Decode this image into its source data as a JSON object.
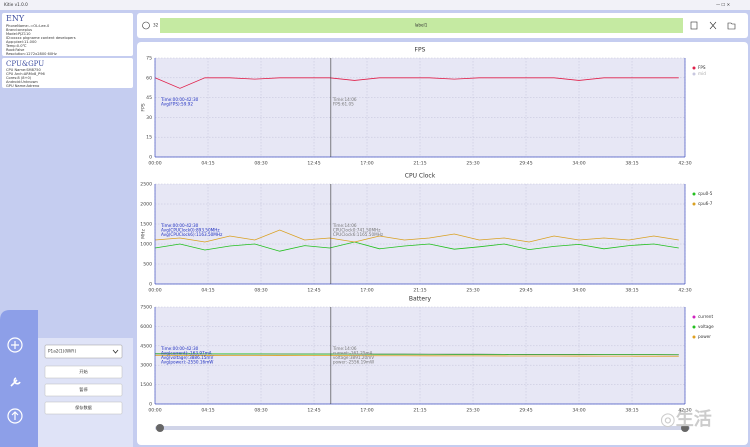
{
  "title_bar": {
    "title": "Kitie v1.0.0"
  },
  "device": {
    "heading": "ENY",
    "lines": [
      "PhoneName:-=OL:Lee-0",
      "Brand:oneplus",
      "Model:PJZ110",
      "ID:xxxxx pkgname content developers",
      "App:pixel:11.000",
      "Temp:0.0℃",
      "Root:False",
      "Resolution:1272x2800 60Hz"
    ]
  },
  "cpu_gpu": {
    "heading": "CPU&GPU",
    "lines": [
      "CPU Name:SM8750",
      "CPU Arch:ARMv8_P96",
      "Cores:8 (8+0)",
      "Android:Unknown",
      "GPU Name:Adreno"
    ]
  },
  "controls": {
    "device_select": "P1a2(1)(WiFi)",
    "buttons": [
      "开始",
      "暂停",
      "保存数据"
    ]
  },
  "toolbar": {
    "count": "32",
    "label": "label1"
  },
  "charts": [
    {
      "type": "line",
      "title": "FPS",
      "ylabel": "FPS",
      "ylim": [
        0,
        75
      ],
      "yticks": [
        0,
        15,
        30,
        45,
        60,
        75
      ],
      "xlim": [
        0,
        42.5
      ],
      "xticks": [
        {
          "value": 0,
          "label": "00:00"
        },
        {
          "value": 4.25,
          "label": "04:15"
        },
        {
          "value": 8.5,
          "label": "08:30"
        },
        {
          "value": 12.75,
          "label": "12:45"
        },
        {
          "value": 17,
          "label": "17:00"
        },
        {
          "value": 21.25,
          "label": "21:15"
        },
        {
          "value": 25.5,
          "label": "25:30"
        },
        {
          "value": 29.75,
          "label": "29:45"
        },
        {
          "value": 34,
          "label": "34:00"
        },
        {
          "value": 38.25,
          "label": "38:15"
        },
        {
          "value": 42.5,
          "label": "42:30"
        }
      ],
      "x": [
        0,
        2,
        4,
        6,
        8,
        10,
        12,
        14,
        16,
        18,
        20,
        22,
        24,
        26,
        28,
        30,
        32,
        34,
        36,
        38,
        40,
        42
      ],
      "series": [
        {
          "name": "FPS",
          "color": "#e0204a",
          "values": [
            60,
            52,
            60,
            60,
            59,
            60,
            60,
            60,
            58,
            60,
            60,
            60,
            59,
            60,
            60,
            60,
            60,
            58,
            60,
            60,
            60,
            60
          ]
        }
      ],
      "extra_legend": {
        "name": "mid",
        "color": "#c8c8e0"
      },
      "summary": [
        "Time:00:00-42:30",
        "Avg(FPS):59.92"
      ],
      "cursor": {
        "x": 14.1,
        "lines": [
          "Time:14:06",
          "FPS:61.05"
        ]
      }
    },
    {
      "type": "line",
      "title": "CPU Clock",
      "ylabel": "MHz",
      "ylim": [
        0,
        2500
      ],
      "yticks": [
        0,
        500,
        1000,
        1500,
        2000,
        2500
      ],
      "xlim": [
        0,
        42.5
      ],
      "xticks": [
        {
          "value": 0,
          "label": "00:00"
        },
        {
          "value": 4.25,
          "label": "04:15"
        },
        {
          "value": 8.5,
          "label": "08:30"
        },
        {
          "value": 12.75,
          "label": "12:45"
        },
        {
          "value": 17,
          "label": "17:00"
        },
        {
          "value": 21.25,
          "label": "21:15"
        },
        {
          "value": 25.5,
          "label": "25:30"
        },
        {
          "value": 29.75,
          "label": "29:45"
        },
        {
          "value": 34,
          "label": "34:00"
        },
        {
          "value": 38.25,
          "label": "38:15"
        },
        {
          "value": 42.5,
          "label": "42:30"
        }
      ],
      "x": [
        0,
        2,
        4,
        6,
        8,
        10,
        12,
        14,
        16,
        18,
        20,
        22,
        24,
        26,
        28,
        30,
        32,
        34,
        36,
        38,
        40,
        42
      ],
      "series": [
        {
          "name": "cpu0-5",
          "color": "#22c01e",
          "values": [
            900,
            1000,
            850,
            950,
            1000,
            820,
            960,
            900,
            1050,
            880,
            950,
            1000,
            870,
            930,
            1000,
            860,
            940,
            990,
            880,
            960,
            1000,
            900
          ]
        },
        {
          "name": "cpu6-7",
          "color": "#d9a020",
          "values": [
            1100,
            1150,
            1050,
            1200,
            1100,
            1350,
            1100,
            1150,
            1050,
            1200,
            1100,
            1150,
            1250,
            1100,
            1150,
            1050,
            1200,
            1100,
            1150,
            1100,
            1200,
            1100
          ]
        }
      ],
      "summary": [
        "Time:00:00-42:30",
        "Avg(CPUClock0):893.50MHz",
        "Avg(CPUClock6):1163.50MHz"
      ],
      "cursor": {
        "x": 14.1,
        "lines": [
          "Time:14:06",
          "CPUClock0:741.50MHz",
          "CPUClock6:1165.50MHz"
        ]
      }
    },
    {
      "type": "line",
      "title": "Battery",
      "ylim": [
        0,
        7500
      ],
      "yticks": [
        0,
        1500,
        3000,
        4500,
        6000,
        7500
      ],
      "xlim": [
        0,
        42.5
      ],
      "xticks": [
        {
          "value": 0,
          "label": "00:00"
        },
        {
          "value": 4.25,
          "label": "04:15"
        },
        {
          "value": 8.5,
          "label": "08:30"
        },
        {
          "value": 12.75,
          "label": "12:45"
        },
        {
          "value": 17,
          "label": "17:00"
        },
        {
          "value": 21.25,
          "label": "21:15"
        },
        {
          "value": 25.5,
          "label": "25:30"
        },
        {
          "value": 29.75,
          "label": "29:45"
        },
        {
          "value": 34,
          "label": "34:00"
        },
        {
          "value": 38.25,
          "label": "38:15"
        },
        {
          "value": 42.5,
          "label": "42:30"
        }
      ],
      "x": [
        0,
        2,
        4,
        6,
        8,
        10,
        12,
        14,
        16,
        18,
        20,
        22,
        24,
        26,
        28,
        30,
        32,
        34,
        36,
        38,
        40,
        42
      ],
      "series": [
        {
          "name": "current",
          "color": "#d020c0",
          "values": [
            3880,
            3880,
            3875,
            3870,
            3870,
            3865,
            3860,
            3860,
            3855,
            3850,
            3850,
            3845,
            3840,
            3840,
            3835,
            3830,
            3830,
            3825,
            3820,
            3820,
            3815,
            3810
          ]
        },
        {
          "name": "voltage",
          "color": "#22c01e",
          "values": [
            3880,
            3880,
            3875,
            3870,
            3870,
            3865,
            3860,
            3860,
            3855,
            3850,
            3850,
            3845,
            3840,
            3840,
            3835,
            3830,
            3830,
            3825,
            3820,
            3820,
            3815,
            3810
          ]
        },
        {
          "name": "power",
          "color": "#e0a020",
          "values": [
            3760,
            3760,
            3755,
            3750,
            3750,
            3745,
            3740,
            3740,
            3735,
            3730,
            3730,
            3725,
            3720,
            3720,
            3715,
            3710,
            3710,
            3705,
            3700,
            3700,
            3695,
            3690
          ]
        }
      ],
      "summary": [
        "Time:00:00-42:30",
        "Avg(current):-163.97mA",
        "Avg(voltage):3886.15mV",
        "Avg(power):-2550.16mW"
      ],
      "cursor": {
        "x": 14.1,
        "lines": [
          "Time:14:06",
          "current:-161.25mA",
          "voltage:3891.20mV",
          "power:-2556.19mW"
        ]
      }
    }
  ]
}
